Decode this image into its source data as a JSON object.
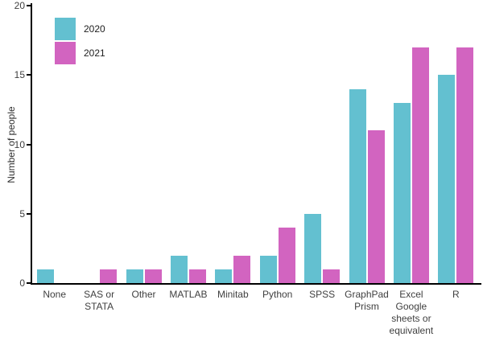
{
  "chart_data": {
    "type": "bar",
    "title": "",
    "xlabel": "",
    "ylabel": "Number of people",
    "ylim": [
      0,
      20
    ],
    "yticks": [
      0,
      5,
      10,
      15,
      20
    ],
    "grid": false,
    "legend_position": "top-left",
    "categories": [
      "None",
      "SAS or\nSTATA",
      "Other",
      "MATLAB",
      "Minitab",
      "Python",
      "SPSS",
      "GraphPad\nPrism",
      "Excel\nGoogle\nsheets or\nequivalent",
      "R"
    ],
    "series": [
      {
        "name": "2020",
        "color": "#63C0D0",
        "values": [
          1,
          0,
          1,
          2,
          1,
          2,
          5,
          14,
          13,
          15
        ]
      },
      {
        "name": "2021",
        "color": "#D264C0",
        "values": [
          0,
          1,
          1,
          1,
          2,
          4,
          1,
          11,
          17,
          17
        ]
      }
    ],
    "colors": {
      "axis": "#000000",
      "text": "#404040",
      "background": "#ffffff"
    }
  }
}
